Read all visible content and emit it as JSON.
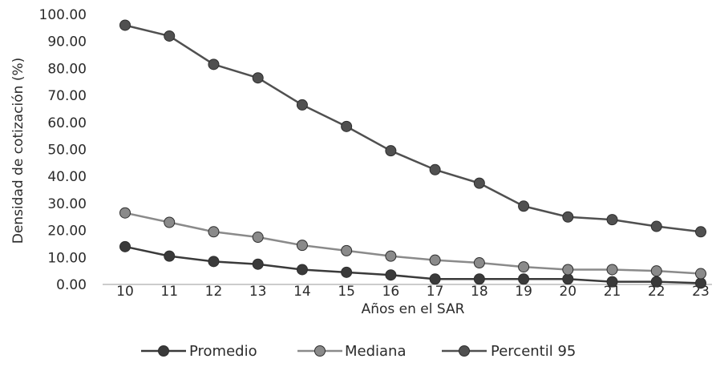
{
  "chart_data": {
    "type": "line",
    "title": "",
    "xlabel": "Años en el SAR",
    "ylabel": "Densidad de cotización (%)",
    "x": [
      "10",
      "11",
      "12",
      "13",
      "14",
      "15",
      "16",
      "17",
      "18",
      "19",
      "20",
      "21",
      "22",
      "23"
    ],
    "yticks": [
      "0.00",
      "10.00",
      "20.00",
      "30.00",
      "40.00",
      "50.00",
      "60.00",
      "70.00",
      "80.00",
      "90.00",
      "100.00"
    ],
    "ylim": [
      0,
      100
    ],
    "grid": false,
    "legend_position": "bottom",
    "series": [
      {
        "name": "Promedio",
        "color": "#3a3a3a",
        "marker": "circle",
        "values": [
          14.0,
          10.5,
          8.5,
          7.5,
          5.5,
          4.5,
          3.5,
          2.0,
          2.0,
          2.0,
          2.0,
          1.0,
          1.0,
          0.5
        ]
      },
      {
        "name": "Mediana",
        "color": "#8a8a8a",
        "marker": "circle",
        "values": [
          26.5,
          23.0,
          19.5,
          17.5,
          14.5,
          12.5,
          10.5,
          9.0,
          8.0,
          6.5,
          5.5,
          5.5,
          5.0,
          4.0
        ]
      },
      {
        "name": "Percentil 95",
        "color": "#505050",
        "marker": "circle",
        "values": [
          96.0,
          92.0,
          81.5,
          76.5,
          66.5,
          58.5,
          49.5,
          42.5,
          37.5,
          29.0,
          25.0,
          24.0,
          21.5,
          19.5
        ]
      }
    ]
  }
}
